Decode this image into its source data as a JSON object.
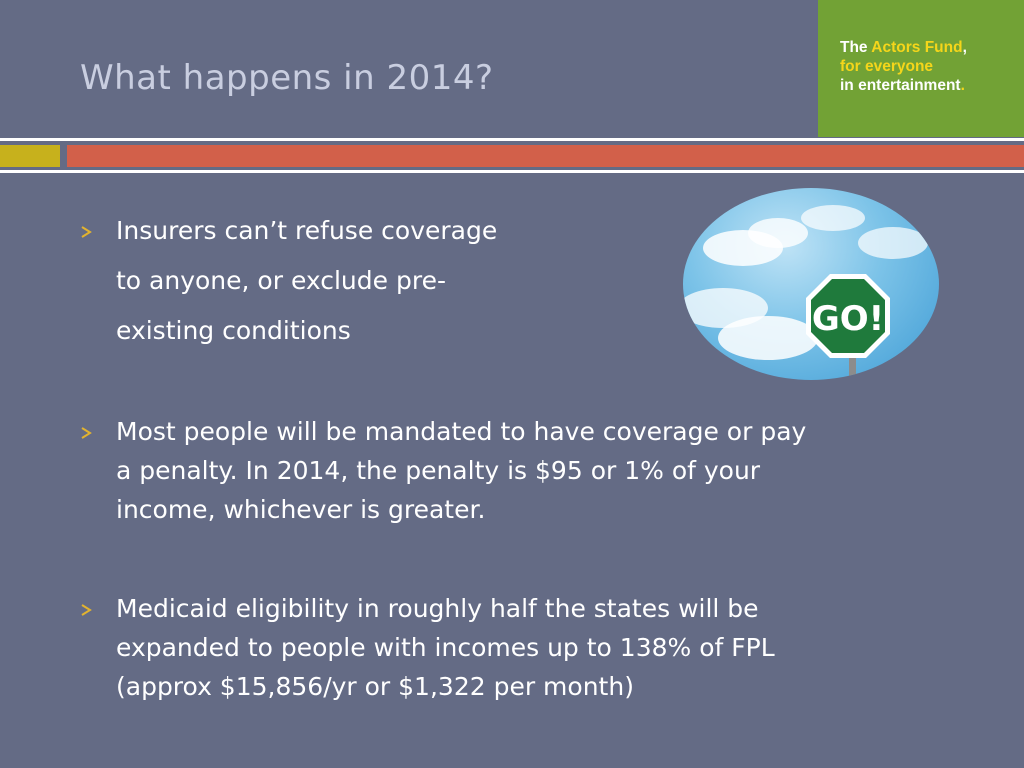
{
  "slide": {
    "title": "What happens in 2014?"
  },
  "logo": {
    "line1_pre": "The ",
    "line1_hl": "Actors Fund",
    "line1_post": ",",
    "line2": "for everyone",
    "line3_pre": "in entertainment",
    "line3_post": "."
  },
  "bullets": [
    {
      "lines": [
        "Insurers can’t refuse coverage",
        "to anyone, or exclude pre-",
        "existing conditions"
      ]
    },
    {
      "lines": [
        "Most people will be mandated to have coverage or pay",
        "a penalty. In 2014, the penalty is $95 or 1% of your",
        "income, whichever is greater."
      ]
    },
    {
      "lines": [
        "Medicaid eligibility in roughly half the states will be",
        "expanded to people with incomes up to 138% of FPL",
        "(approx $15,856/yr or $1,322 per month)"
      ]
    }
  ],
  "image": {
    "sign_text": "GO!"
  },
  "colors": {
    "background": "#646b85",
    "title": "#c9cee0",
    "logo_bg": "#72a235",
    "logo_highlight": "#f5d61a",
    "accent_yellow": "#c7b11c",
    "accent_red": "#d2604a",
    "bullet_arrow": "#e2b32f"
  }
}
